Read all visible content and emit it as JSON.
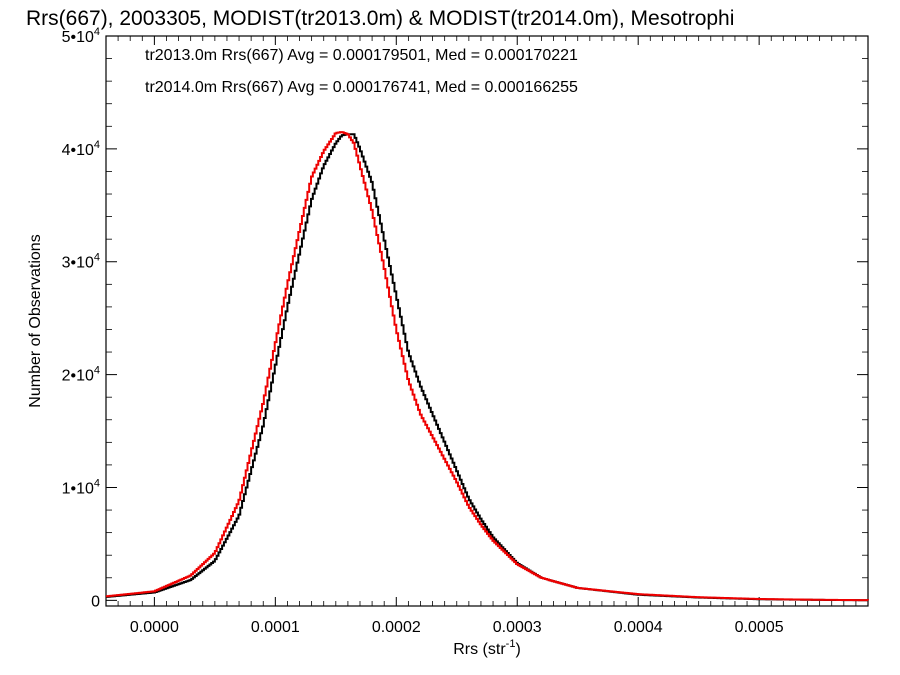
{
  "chart_data": {
    "type": "line",
    "title": "Rrs(667), 2003305, MODIST(tr2013.0m) & MODIST(tr2014.0m), Mesotrophi",
    "xlabel": "Rrs (str",
    "xlabel_sup": "-1",
    "xlabel_close": ")",
    "ylabel": "Number of Observations",
    "xlim": [
      -4e-05,
      0.00059
    ],
    "ylim": [
      -500,
      50000
    ],
    "x_ticks": [
      0.0,
      0.0001,
      0.0002,
      0.0003,
      0.0004,
      0.0005
    ],
    "x_tick_labels": [
      "0.0000",
      "0.0001",
      "0.0002",
      "0.0003",
      "0.0004",
      "0.0005"
    ],
    "y_ticks": [
      0,
      10000,
      20000,
      30000,
      40000,
      50000
    ],
    "y_tick_labels": [
      {
        "base": "0",
        "exp": ""
      },
      {
        "base": "1•10",
        "exp": "4"
      },
      {
        "base": "2•10",
        "exp": "4"
      },
      {
        "base": "3•10",
        "exp": "4"
      },
      {
        "base": "4•10",
        "exp": "4"
      },
      {
        "base": "5•10",
        "exp": "4"
      }
    ],
    "legend_placement": "top-left",
    "grid": false,
    "series": [
      {
        "name": "tr2013.0m",
        "legend": "tr2013.0m Rrs(667) Avg = 0.000179501, Med = 0.000170221",
        "color": "#000000",
        "x": [
          -4e-05,
          0.0,
          3e-05,
          5e-05,
          7e-05,
          9e-05,
          0.00011,
          0.00013,
          0.00014,
          0.00015,
          0.000155,
          0.00016,
          0.000165,
          0.00017,
          0.00018,
          0.00019,
          0.0002,
          0.00021,
          0.00022,
          0.00023,
          0.00024,
          0.00025,
          0.00026,
          0.00027,
          0.00028,
          0.0003,
          0.00032,
          0.00035,
          0.0004,
          0.00045,
          0.0005,
          0.00055,
          0.00059
        ],
        "y": [
          300,
          700,
          1800,
          3500,
          7500,
          15500,
          26000,
          35500,
          38500,
          40500,
          41200,
          41300,
          41300,
          40000,
          37000,
          32000,
          27000,
          22000,
          19000,
          16500,
          14000,
          11500,
          9000,
          7200,
          5600,
          3300,
          2000,
          1100,
          500,
          250,
          100,
          40,
          10
        ]
      },
      {
        "name": "tr2014.0m",
        "legend": "tr2014.0m Rrs(667) Avg = 0.000176741, Med = 0.000166255",
        "color": "#ee0000",
        "x": [
          -4e-05,
          0.0,
          3e-05,
          5e-05,
          7e-05,
          9e-05,
          0.00011,
          0.00013,
          0.00014,
          0.00015,
          0.000155,
          0.00016,
          0.000165,
          0.00017,
          0.00018,
          0.00019,
          0.0002,
          0.00021,
          0.00022,
          0.00023,
          0.00024,
          0.00025,
          0.00026,
          0.00027,
          0.00028,
          0.0003,
          0.00032,
          0.00035,
          0.0004,
          0.00045,
          0.0005,
          0.00055,
          0.00059
        ],
        "y": [
          350,
          800,
          2200,
          4200,
          8800,
          17500,
          28000,
          37500,
          39800,
          41400,
          41500,
          41300,
          40500,
          38500,
          34500,
          29500,
          24000,
          19500,
          16500,
          14500,
          12500,
          10500,
          8300,
          6700,
          5300,
          3200,
          2000,
          1100,
          550,
          280,
          120,
          50,
          15
        ]
      }
    ]
  }
}
